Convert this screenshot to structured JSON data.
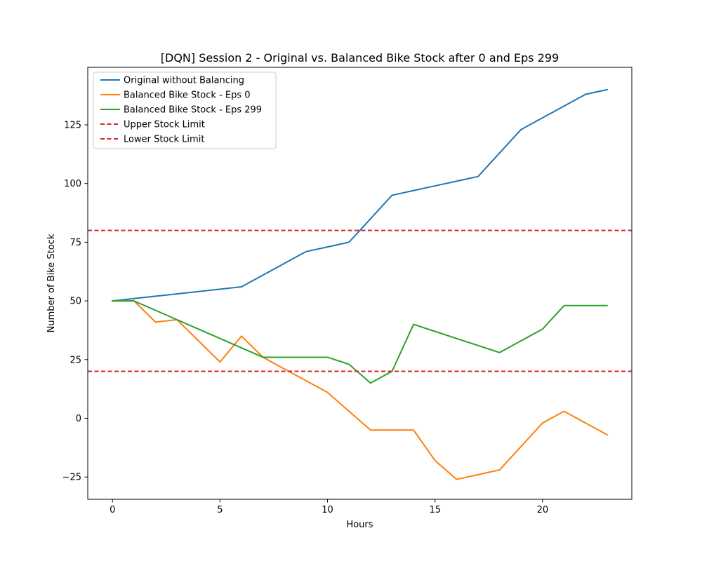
{
  "chart_data": {
    "type": "line",
    "title": "[DQN] Session 2 - Original vs. Balanced Bike Stock after 0 and Eps 299",
    "xlabel": "Hours",
    "ylabel": "Number of Bike Stock",
    "xlim": [
      -1.15,
      24.15
    ],
    "ylim": [
      -34.5,
      149.5
    ],
    "xticks": [
      0,
      5,
      10,
      15,
      20
    ],
    "yticks": [
      -25,
      0,
      25,
      50,
      75,
      100,
      125
    ],
    "x": [
      0,
      1,
      2,
      3,
      4,
      5,
      6,
      7,
      8,
      9,
      10,
      11,
      12,
      13,
      14,
      15,
      16,
      17,
      18,
      19,
      20,
      21,
      22,
      23
    ],
    "series": [
      {
        "name": "Original without Balancing",
        "color": "#1f77b4",
        "style": "solid",
        "values": [
          50,
          51,
          52,
          53,
          54,
          55,
          56,
          61,
          66,
          71,
          73,
          75,
          85,
          95,
          97,
          99,
          101,
          103,
          113,
          123,
          128,
          133,
          138,
          140
        ]
      },
      {
        "name": "Balanced Bike Stock - Eps 0",
        "color": "#ff7f0e",
        "style": "solid",
        "values": [
          50,
          50,
          41,
          42,
          33,
          24,
          35,
          26,
          21,
          16,
          11,
          3,
          -5,
          -5,
          -5,
          -18,
          -26,
          -24,
          -22,
          -12,
          -2,
          3,
          -2,
          -7
        ]
      },
      {
        "name": "Balanced Bike Stock - Eps 299",
        "color": "#2ca02c",
        "style": "solid",
        "values": [
          50,
          50,
          46,
          42,
          38,
          34,
          30,
          26,
          26,
          26,
          26,
          23,
          15,
          20,
          40,
          37,
          34,
          31,
          28,
          33,
          38,
          48,
          48,
          48
        ]
      },
      {
        "name": "Upper Stock Limit",
        "color": "#d62728",
        "style": "dashed",
        "hline": 80
      },
      {
        "name": "Lower Stock Limit",
        "color": "#d62728",
        "style": "dashed",
        "hline": 20
      }
    ],
    "legend": "upper-left",
    "grid": false
  }
}
